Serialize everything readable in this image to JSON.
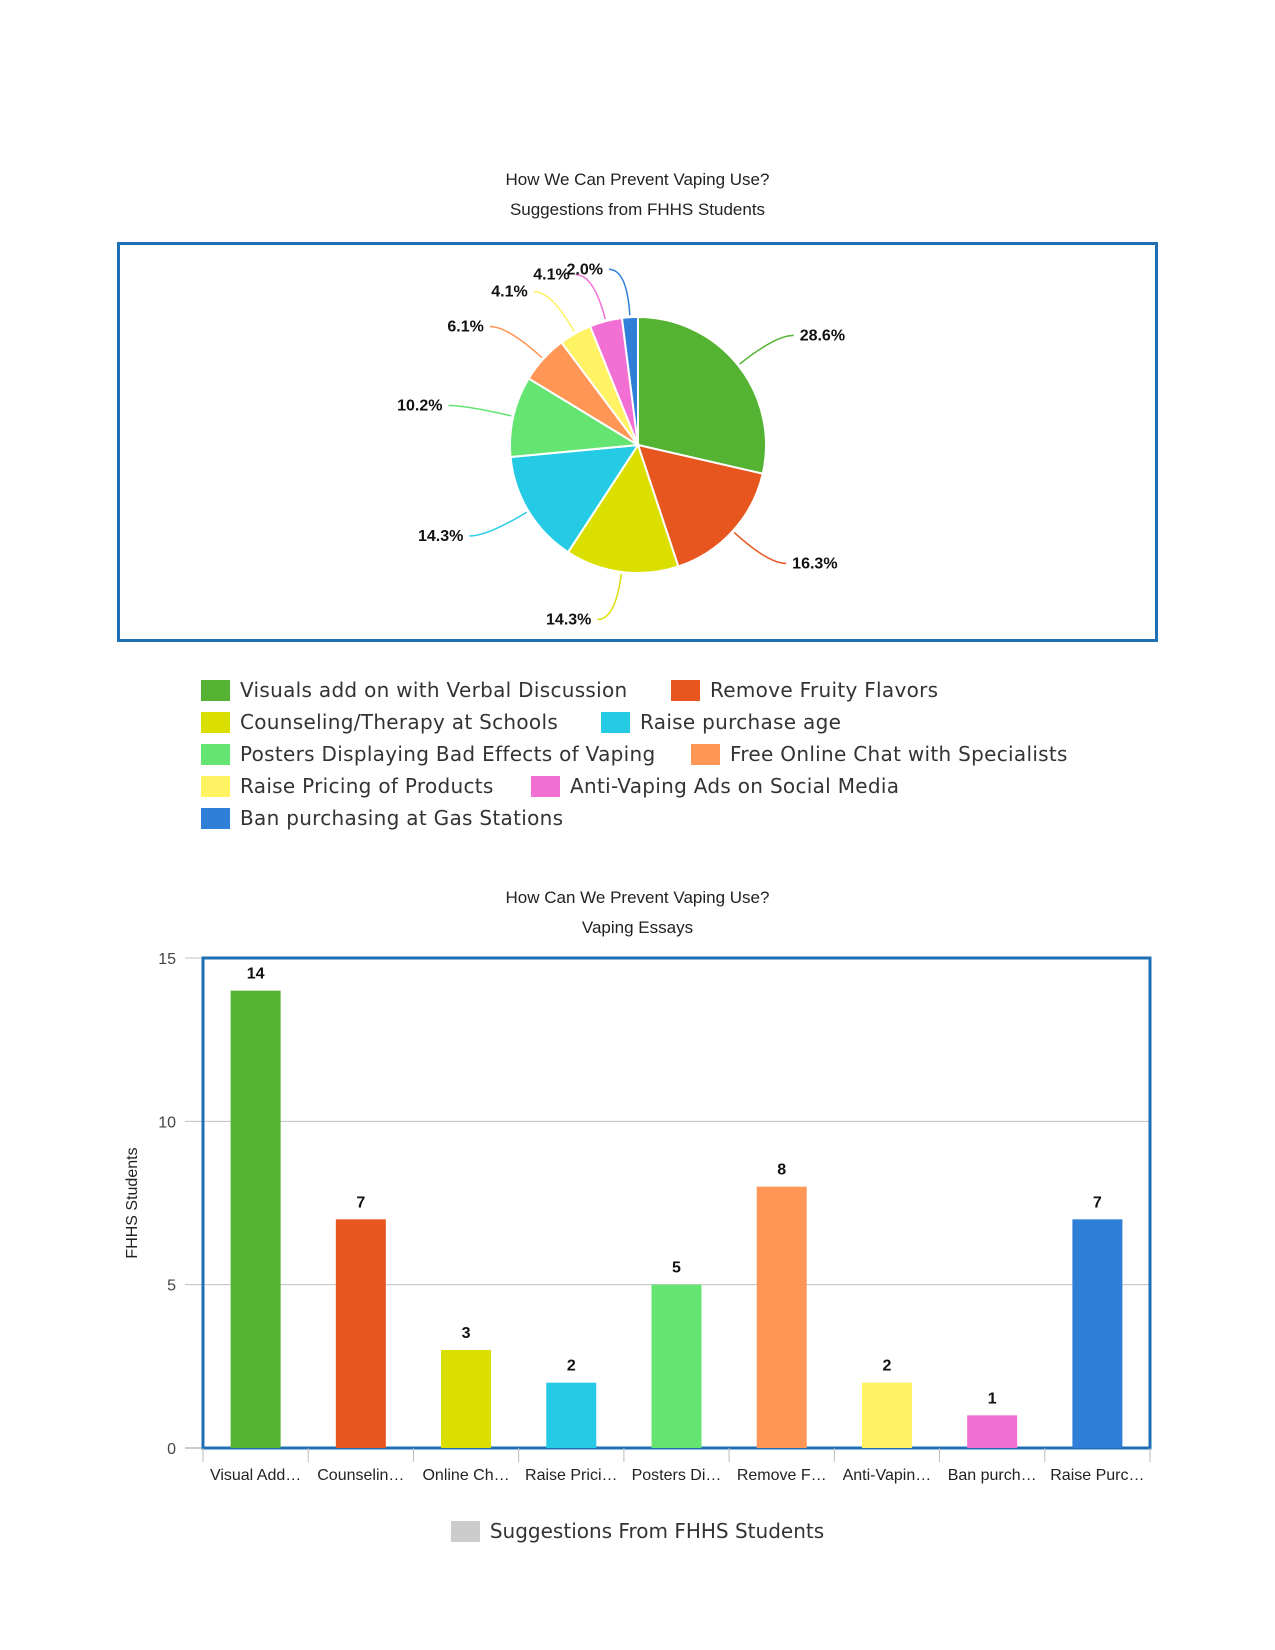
{
  "pie_chart": {
    "title_line1": "How We Can Prevent Vaping Use?",
    "title_line2": "Suggestions from FHHS Students"
  },
  "bar_chart": {
    "title_line1": "How Can We Prevent Vaping Use?",
    "title_line2": "Vaping Essays",
    "ylabel": "FHHS Students",
    "legend_label": "Suggestions From FHHS Students"
  },
  "chart_data": [
    {
      "type": "pie",
      "title": "How We Can Prevent Vaping Use?",
      "subtitle": "Suggestions from FHHS Students",
      "legend_position": "bottom",
      "slices": [
        {
          "label": "Visuals add on with Verbal Discussion",
          "value": 28.6,
          "display": "28.6%",
          "color": "#54b332"
        },
        {
          "label": "Remove Fruity Flavors",
          "value": 16.3,
          "display": "16.3%",
          "color": "#e8561f"
        },
        {
          "label": "Counseling/Therapy at Schools",
          "value": 14.3,
          "display": "14.3%",
          "color": "#dbdf00"
        },
        {
          "label": "Raise purchase age",
          "value": 14.3,
          "display": "14.3%",
          "color": "#25cbe5"
        },
        {
          "label": "Posters Displaying Bad Effects of Vaping",
          "value": 10.2,
          "display": "10.2%",
          "color": "#64e572"
        },
        {
          "label": "Free Online Chat with Specialists",
          "value": 6.1,
          "display": "6.1%",
          "color": "#ff9655"
        },
        {
          "label": "Raise Pricing of Products",
          "value": 4.1,
          "display": "4.1%",
          "color": "#fff263"
        },
        {
          "label": "Anti-Vaping Ads on Social Media",
          "value": 4.1,
          "display": "4.1%",
          "color": "#f26fd4"
        },
        {
          "label": "Ban purchasing at Gas Stations",
          "value": 2.0,
          "display": "2.0%",
          "color": "#2f7ed8"
        }
      ]
    },
    {
      "type": "bar",
      "title": "How Can We Prevent Vaping Use?",
      "subtitle": "Vaping Essays",
      "xlabel": "",
      "ylabel": "FHHS Students",
      "ylim": [
        0,
        15
      ],
      "yticks": [
        0,
        5,
        10,
        15
      ],
      "grid": true,
      "legend_position": "bottom",
      "categories": [
        "Visual Add…",
        "Counselin…",
        "Online Ch…",
        "Raise Prici…",
        "Posters Di…",
        "Remove F…",
        "Anti-Vapin…",
        "Ban purch…",
        "Raise Purc…"
      ],
      "series": [
        {
          "name": "Suggestions From FHHS Students",
          "values": [
            14,
            7,
            3,
            2,
            5,
            8,
            2,
            1,
            7
          ]
        }
      ],
      "colors": [
        "#54b332",
        "#e8561f",
        "#dbdf00",
        "#25cbe5",
        "#64e572",
        "#ff9655",
        "#fff263",
        "#f26fd4",
        "#2f7ed8"
      ]
    }
  ]
}
